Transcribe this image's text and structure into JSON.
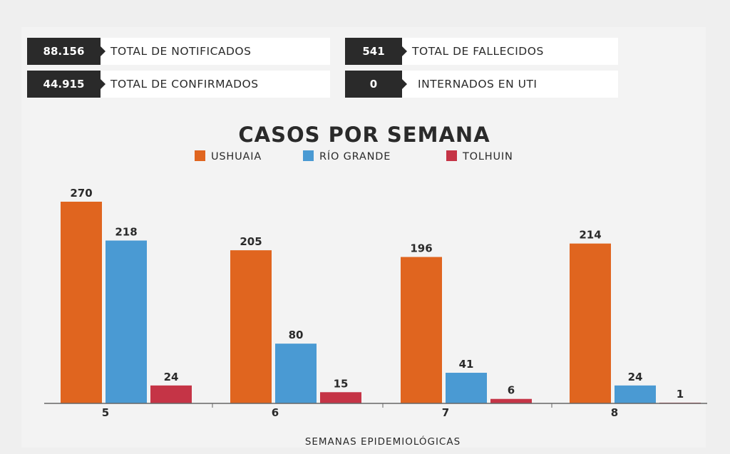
{
  "stats": [
    {
      "value": "88.156",
      "label": "TOTAL DE NOTIFICADOS"
    },
    {
      "value": "44.915",
      "label": "TOTAL DE CONFIRMADOS"
    },
    {
      "value": "541",
      "label": "TOTAL DE FALLECIDOS"
    },
    {
      "value": "0",
      "label": "INTERNADOS EN UTI"
    }
  ],
  "colors": {
    "ushuaia": "#e0651f",
    "rio_grande": "#4a9ad3",
    "tolhuin": "#c53446",
    "text": "#2a2a2a"
  },
  "chart_data": {
    "type": "bar",
    "title": "CASOS POR SEMANA",
    "xlabel": "SEMANAS EPIDEMIOLÓGICAS",
    "ylabel": "",
    "categories": [
      "5",
      "6",
      "7",
      "8"
    ],
    "series": [
      {
        "name": "USHUAIA",
        "color": "#e0651f",
        "values": [
          270,
          205,
          196,
          214
        ]
      },
      {
        "name": "RÍO GRANDE",
        "color": "#4a9ad3",
        "values": [
          218,
          80,
          41,
          24
        ]
      },
      {
        "name": "TOLHUIN",
        "color": "#c53446",
        "values": [
          24,
          15,
          6,
          1
        ]
      }
    ],
    "ylim": [
      0,
      270
    ],
    "grid": false,
    "legend": "top"
  }
}
